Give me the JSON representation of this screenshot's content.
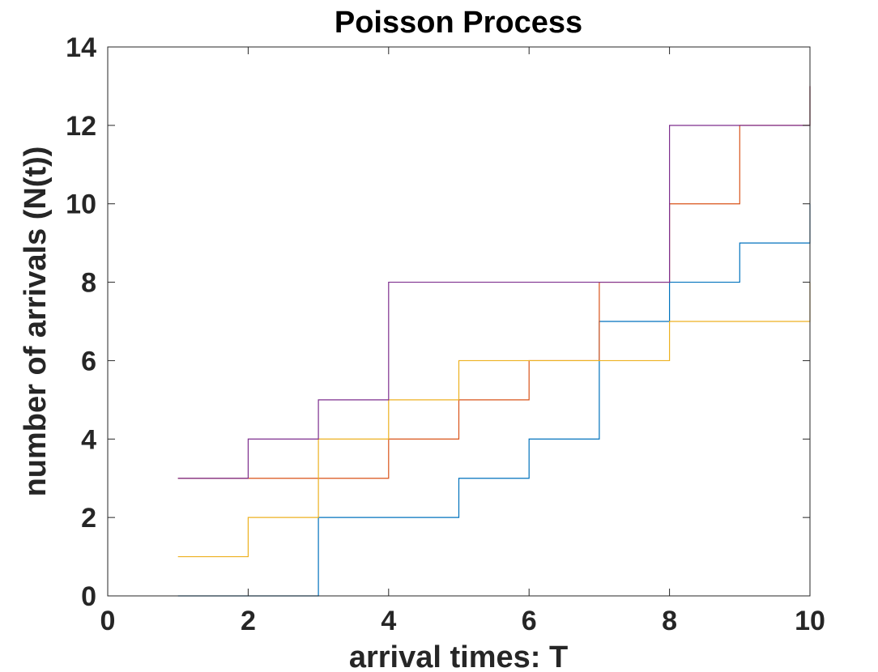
{
  "chart_data": {
    "type": "line",
    "step": "post",
    "title": "Poisson Process",
    "xlabel": "arrival times: T",
    "ylabel": "number of arrivals (N(t))",
    "xlim": [
      0,
      10
    ],
    "ylim": [
      0,
      14
    ],
    "xticks": [
      0,
      2,
      4,
      6,
      8,
      10
    ],
    "yticks": [
      0,
      2,
      4,
      6,
      8,
      10,
      12,
      14
    ],
    "grid": false,
    "x": [
      1,
      2,
      3,
      4,
      5,
      6,
      7,
      8,
      9,
      10
    ],
    "series": [
      {
        "color": "#0072BD",
        "values": [
          0,
          0,
          2,
          2,
          3,
          4,
          7,
          8,
          9,
          10
        ]
      },
      {
        "color": "#D95319",
        "values": [
          3,
          3,
          3,
          4,
          5,
          6,
          8,
          10,
          12,
          13
        ]
      },
      {
        "color": "#EDB120",
        "values": [
          1,
          2,
          4,
          5,
          6,
          6,
          6,
          7,
          7,
          8
        ]
      },
      {
        "color": "#7E2F8E",
        "values": [
          3,
          4,
          5,
          8,
          8,
          8,
          8,
          12,
          12,
          13
        ]
      }
    ]
  }
}
